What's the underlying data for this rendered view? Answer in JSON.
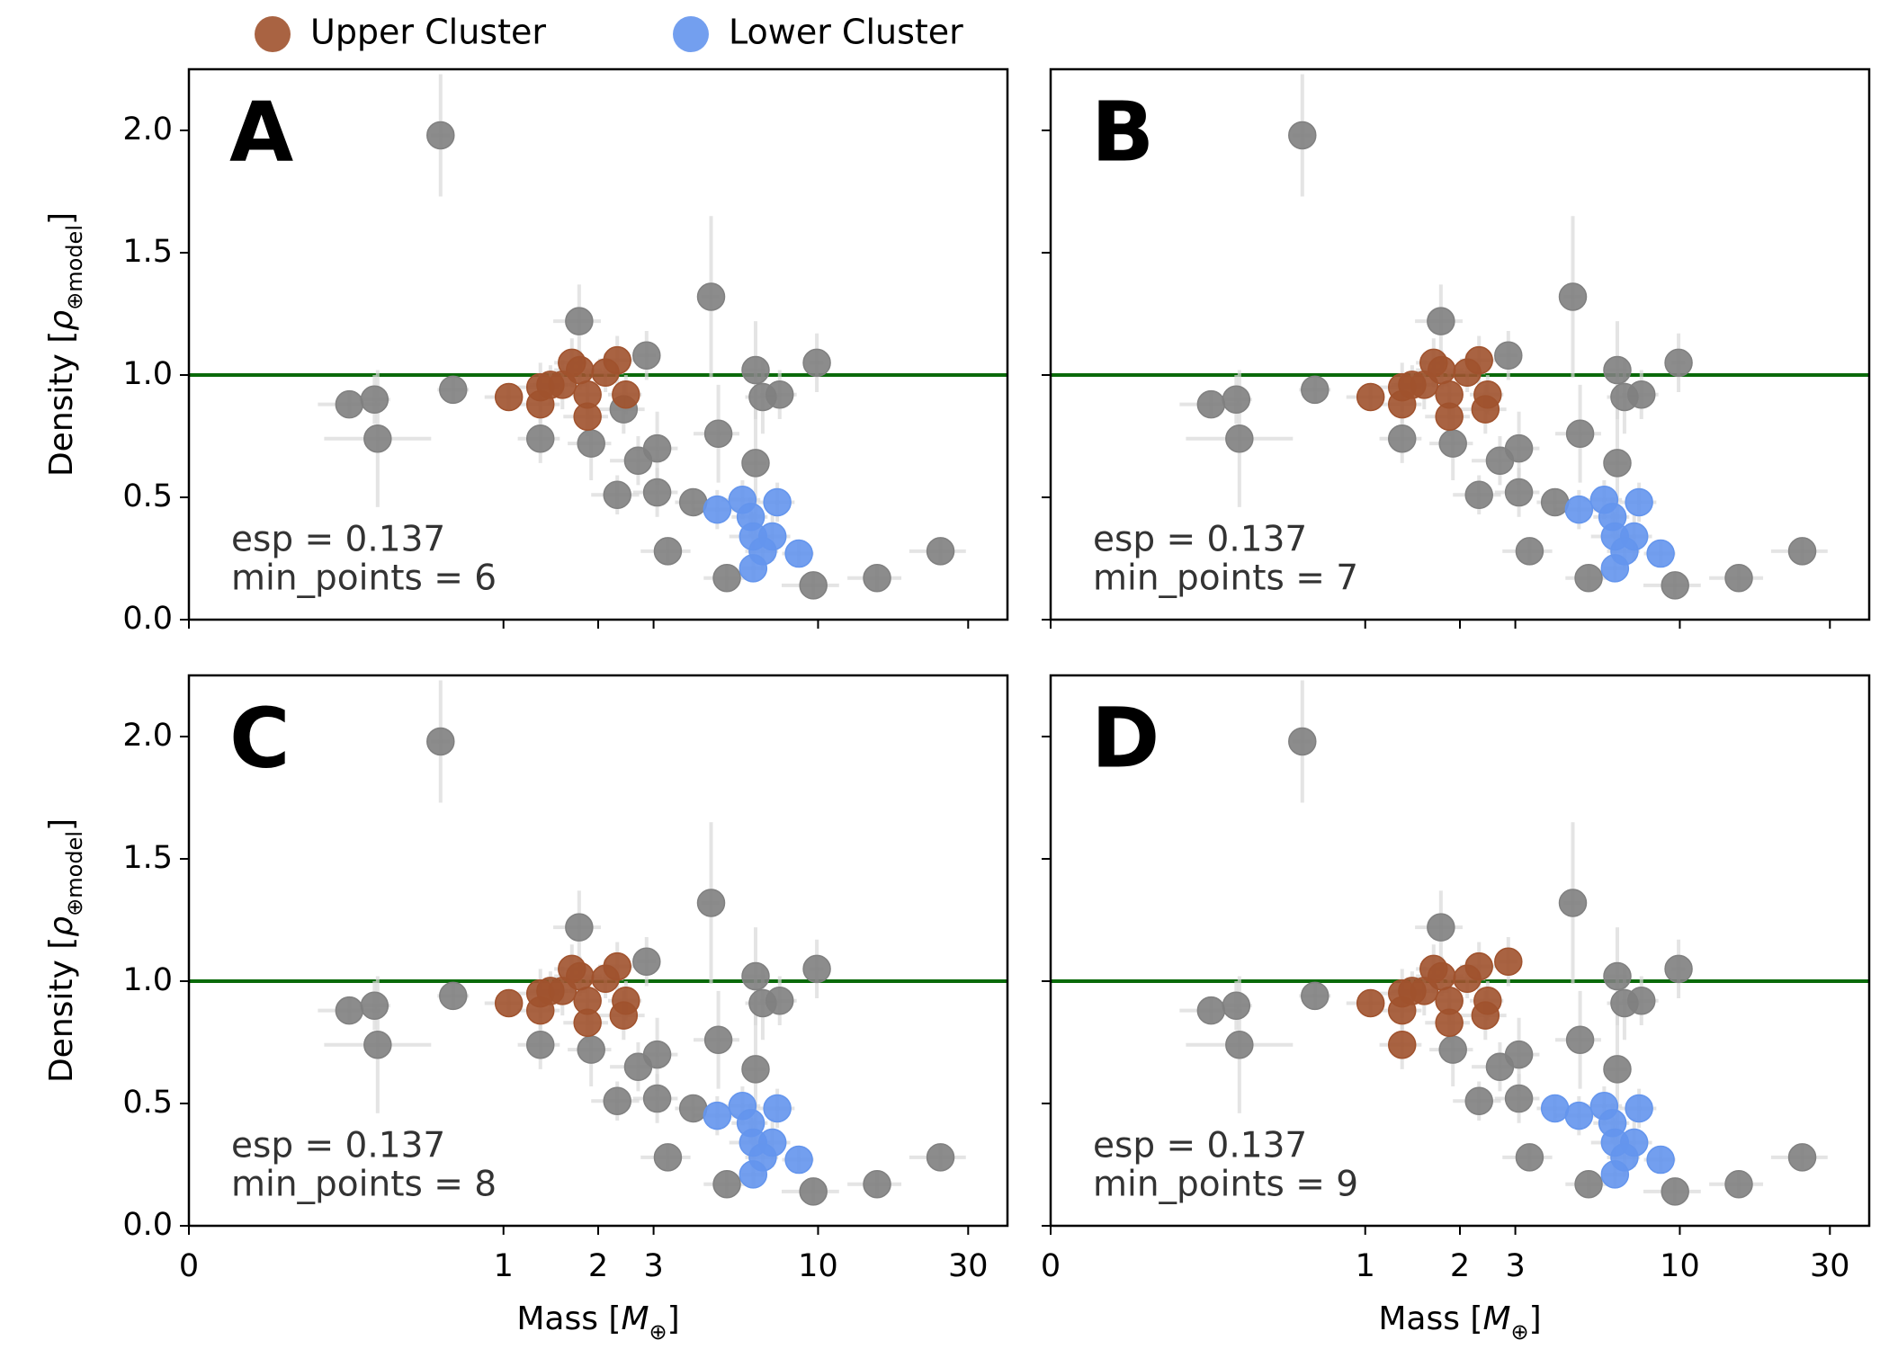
{
  "chart_data": [
    {
      "type": "scatter",
      "panel_label": "A",
      "annotation": [
        "esp = 0.137",
        "min_points = 6"
      ],
      "xscale": "symlog",
      "linthresh": 1,
      "xlim": [
        0,
        40
      ],
      "xticks": [
        0,
        1,
        2,
        3,
        10,
        30
      ],
      "ylim": [
        0,
        2.25
      ],
      "yticks": [
        {
          "value": 0,
          "label": "0.0"
        },
        0.5,
        {
          "value": 1,
          "label": "1.0"
        },
        1.5,
        {
          "value": 2,
          "label": "2.0"
        }
      ],
      "ylabel": [
        "Density [",
        "ρ",
        "⊕model",
        "]"
      ],
      "hline": 1,
      "hline_color": "#0a6a0a",
      "series": [
        {
          "color": "#808080",
          "x": [
            0.8,
            0.51,
            0.59,
            0.6,
            0.84,
            1.74,
            1.31,
            1.9,
            2.41,
            2.85,
            2.68,
            3.08,
            2.3,
            3.08,
            3.33,
            4.01,
            4.57,
            4.82,
            5.13,
            6.33,
            6.33,
            6.67,
            7.55,
            9.91,
            9.66,
            15.4,
            24.5
          ],
          "values": [
            1.98,
            0.88,
            0.9,
            0.74,
            0.94,
            1.22,
            0.74,
            0.72,
            0.86,
            1.08,
            0.65,
            0.7,
            0.51,
            0.52,
            0.28,
            0.48,
            1.32,
            0.76,
            0.17,
            1.02,
            0.64,
            0.91,
            0.92,
            1.05,
            0.14,
            0.17,
            0.28
          ],
          "xerr": [
            0.03,
            0.1,
            0.05,
            0.17,
            0.05,
            0.3,
            0.2,
            0.3,
            0.4,
            0.2,
            0.5,
            0.5,
            0.4,
            0.5,
            0.6,
            0.5,
            0.3,
            0.8,
            0.8,
            0.5,
            0.5,
            0.8,
            1.0,
            0.5,
            2,
            3,
            5
          ],
          "yerr": [
            0.25,
            0.05,
            0.1,
            0.28,
            0.05,
            0.15,
            0.1,
            0.15,
            0.1,
            0.1,
            0.1,
            0.15,
            0.08,
            0.1,
            0.05,
            0.05,
            0.33,
            0.2,
            0.05,
            0.2,
            0.3,
            0.15,
            0.1,
            0.12,
            0.05,
            0.05,
            0.05
          ]
        },
        {
          "name": "Upper Cluster",
          "color": "#a0522d",
          "x": [
            1.04,
            1.31,
            1.31,
            1.41,
            1.54,
            1.65,
            1.75,
            1.85,
            1.85,
            2.11,
            2.3,
            2.45
          ],
          "values": [
            0.91,
            0.95,
            0.88,
            0.96,
            0.96,
            1.05,
            1.02,
            0.92,
            0.83,
            1.01,
            1.06,
            0.92
          ],
          "xerr": [
            0.1,
            0.2,
            0.2,
            0.2,
            0.3,
            0.2,
            0.3,
            0.2,
            0.3,
            0.3,
            0.3,
            0.3
          ],
          "yerr": [
            0.05,
            0.1,
            0.08,
            0.08,
            0.1,
            0.1,
            0.08,
            0.1,
            0.08,
            0.08,
            0.1,
            0.08
          ]
        },
        {
          "name": "Lower Cluster",
          "color": "#6495ed",
          "x": [
            4.78,
            5.75,
            7.42,
            6.11,
            6.22,
            7.16,
            6.67,
            6.22,
            8.69
          ],
          "values": [
            0.45,
            0.49,
            0.48,
            0.42,
            0.34,
            0.34,
            0.28,
            0.21,
            0.27
          ],
          "xerr": [
            0.8,
            0.8,
            1.0,
            0.8,
            1.0,
            1.0,
            0.8,
            0.5,
            1.0
          ],
          "yerr": [
            0.08,
            0.08,
            0.08,
            0.08,
            0.1,
            0.1,
            0.08,
            0.05,
            0.05
          ]
        }
      ]
    },
    {
      "type": "scatter",
      "panel_label": "B",
      "annotation": [
        "esp = 0.137",
        "min_points = 7"
      ],
      "xscale": "symlog",
      "linthresh": 1,
      "xlim": [
        0,
        40
      ],
      "xticks": [
        0,
        1,
        2,
        3,
        10,
        30
      ],
      "ylim": [
        0,
        2.25
      ],
      "yticks": [
        0,
        0.5,
        1,
        1.5,
        2
      ],
      "hline": 1,
      "hline_color": "#0a6a0a",
      "series": [
        {
          "color": "#808080",
          "x": [
            0.8,
            0.51,
            0.59,
            0.6,
            0.84,
            1.74,
            1.31,
            1.9,
            2.85,
            2.68,
            3.08,
            2.3,
            3.08,
            3.33,
            4.01,
            4.57,
            4.82,
            5.13,
            6.33,
            6.33,
            6.67,
            7.55,
            9.91,
            9.66,
            15.4,
            24.5
          ],
          "values": [
            1.98,
            0.88,
            0.9,
            0.74,
            0.94,
            1.22,
            0.74,
            0.72,
            1.08,
            0.65,
            0.7,
            0.51,
            0.52,
            0.28,
            0.48,
            1.32,
            0.76,
            0.17,
            1.02,
            0.64,
            0.91,
            0.92,
            1.05,
            0.14,
            0.17,
            0.28
          ],
          "xerr": [
            0.03,
            0.1,
            0.05,
            0.17,
            0.05,
            0.3,
            0.2,
            0.3,
            0.2,
            0.5,
            0.5,
            0.4,
            0.5,
            0.6,
            0.5,
            0.3,
            0.8,
            0.8,
            0.5,
            0.5,
            0.8,
            1.0,
            0.5,
            2,
            3,
            5
          ],
          "yerr": [
            0.25,
            0.05,
            0.1,
            0.28,
            0.05,
            0.15,
            0.1,
            0.15,
            0.1,
            0.1,
            0.15,
            0.08,
            0.1,
            0.05,
            0.05,
            0.33,
            0.2,
            0.05,
            0.2,
            0.3,
            0.15,
            0.1,
            0.12,
            0.05,
            0.05,
            0.05
          ]
        },
        {
          "color": "#a0522d",
          "x": [
            1.04,
            1.31,
            1.31,
            1.41,
            1.54,
            1.65,
            1.75,
            1.85,
            1.85,
            2.11,
            2.3,
            2.45,
            2.41
          ],
          "values": [
            0.91,
            0.95,
            0.88,
            0.96,
            0.96,
            1.05,
            1.02,
            0.92,
            0.83,
            1.01,
            1.06,
            0.92,
            0.86
          ],
          "xerr": [
            0.1,
            0.2,
            0.2,
            0.2,
            0.3,
            0.2,
            0.3,
            0.2,
            0.3,
            0.3,
            0.3,
            0.3,
            0.4
          ],
          "yerr": [
            0.05,
            0.1,
            0.08,
            0.08,
            0.1,
            0.1,
            0.08,
            0.1,
            0.08,
            0.08,
            0.1,
            0.08,
            0.1
          ]
        },
        {
          "color": "#6495ed",
          "x": [
            4.78,
            5.75,
            7.42,
            6.11,
            6.22,
            7.16,
            6.67,
            6.22,
            8.69
          ],
          "values": [
            0.45,
            0.49,
            0.48,
            0.42,
            0.34,
            0.34,
            0.28,
            0.21,
            0.27
          ],
          "xerr": [
            0.8,
            0.8,
            1.0,
            0.8,
            1.0,
            1.0,
            0.8,
            0.5,
            1.0
          ],
          "yerr": [
            0.08,
            0.08,
            0.08,
            0.08,
            0.1,
            0.1,
            0.08,
            0.05,
            0.05
          ]
        }
      ]
    },
    {
      "type": "scatter",
      "panel_label": "C",
      "annotation": [
        "esp = 0.137",
        "min_points = 8"
      ],
      "xscale": "symlog",
      "linthresh": 1,
      "xlim": [
        0,
        40
      ],
      "xticks": [
        0,
        1,
        2,
        3,
        10,
        30
      ],
      "ylim": [
        0,
        2.25
      ],
      "yticks": [
        {
          "value": 0,
          "label": "0.0"
        },
        0.5,
        {
          "value": 1,
          "label": "1.0"
        },
        1.5,
        {
          "value": 2,
          "label": "2.0"
        }
      ],
      "ylabel": [
        "Density [",
        "ρ",
        "⊕model",
        "]"
      ],
      "xlabel": [
        "Mass [",
        "M",
        "⊕",
        "]"
      ],
      "hline": 1,
      "hline_color": "#0a6a0a",
      "series": [
        {
          "color": "#808080",
          "x": [
            0.8,
            0.51,
            0.59,
            0.6,
            0.84,
            1.74,
            1.31,
            1.9,
            2.85,
            2.68,
            3.08,
            2.3,
            3.08,
            3.33,
            4.01,
            4.57,
            4.82,
            5.13,
            6.33,
            6.33,
            6.67,
            7.55,
            9.91,
            9.66,
            15.4,
            24.5
          ],
          "values": [
            1.98,
            0.88,
            0.9,
            0.74,
            0.94,
            1.22,
            0.74,
            0.72,
            1.08,
            0.65,
            0.7,
            0.51,
            0.52,
            0.28,
            0.48,
            1.32,
            0.76,
            0.17,
            1.02,
            0.64,
            0.91,
            0.92,
            1.05,
            0.14,
            0.17,
            0.28
          ],
          "xerr": [
            0.03,
            0.1,
            0.05,
            0.17,
            0.05,
            0.3,
            0.2,
            0.3,
            0.2,
            0.5,
            0.5,
            0.4,
            0.5,
            0.6,
            0.5,
            0.3,
            0.8,
            0.8,
            0.5,
            0.5,
            0.8,
            1.0,
            0.5,
            2,
            3,
            5
          ],
          "yerr": [
            0.25,
            0.05,
            0.1,
            0.28,
            0.05,
            0.15,
            0.1,
            0.15,
            0.1,
            0.1,
            0.15,
            0.08,
            0.1,
            0.05,
            0.05,
            0.33,
            0.2,
            0.05,
            0.2,
            0.3,
            0.15,
            0.1,
            0.12,
            0.05,
            0.05,
            0.05
          ]
        },
        {
          "color": "#a0522d",
          "x": [
            1.04,
            1.31,
            1.31,
            1.41,
            1.54,
            1.65,
            1.75,
            1.85,
            1.85,
            2.11,
            2.3,
            2.45,
            2.41
          ],
          "values": [
            0.91,
            0.95,
            0.88,
            0.96,
            0.96,
            1.05,
            1.02,
            0.92,
            0.83,
            1.01,
            1.06,
            0.92,
            0.86
          ],
          "xerr": [
            0.1,
            0.2,
            0.2,
            0.2,
            0.3,
            0.2,
            0.3,
            0.2,
            0.3,
            0.3,
            0.3,
            0.3,
            0.4
          ],
          "yerr": [
            0.05,
            0.1,
            0.08,
            0.08,
            0.1,
            0.1,
            0.08,
            0.1,
            0.08,
            0.08,
            0.1,
            0.08,
            0.1
          ]
        },
        {
          "color": "#6495ed",
          "x": [
            4.78,
            5.75,
            7.42,
            6.11,
            6.22,
            7.16,
            6.67,
            6.22,
            8.69
          ],
          "values": [
            0.45,
            0.49,
            0.48,
            0.42,
            0.34,
            0.34,
            0.28,
            0.21,
            0.27
          ],
          "xerr": [
            0.8,
            0.8,
            1.0,
            0.8,
            1.0,
            1.0,
            0.8,
            0.5,
            1.0
          ],
          "yerr": [
            0.08,
            0.08,
            0.08,
            0.08,
            0.1,
            0.1,
            0.08,
            0.05,
            0.05
          ]
        }
      ]
    },
    {
      "type": "scatter",
      "panel_label": "D",
      "annotation": [
        "esp = 0.137",
        "min_points = 9"
      ],
      "xscale": "symlog",
      "linthresh": 1,
      "xlim": [
        0,
        40
      ],
      "xticks": [
        0,
        1,
        2,
        3,
        10,
        30
      ],
      "ylim": [
        0,
        2.25
      ],
      "yticks": [
        0,
        0.5,
        1,
        1.5,
        2
      ],
      "xlabel": [
        "Mass [",
        "M",
        "⊕",
        "]"
      ],
      "hline": 1,
      "hline_color": "#0a6a0a",
      "series": [
        {
          "color": "#808080",
          "x": [
            0.8,
            0.51,
            0.59,
            0.6,
            0.84,
            1.74,
            1.9,
            2.68,
            3.08,
            2.3,
            3.08,
            3.33,
            4.57,
            4.82,
            5.13,
            6.33,
            6.33,
            6.67,
            7.55,
            9.91,
            9.66,
            15.4,
            24.5
          ],
          "values": [
            1.98,
            0.88,
            0.9,
            0.74,
            0.94,
            1.22,
            0.72,
            0.65,
            0.7,
            0.51,
            0.52,
            0.28,
            1.32,
            0.76,
            0.17,
            1.02,
            0.64,
            0.91,
            0.92,
            1.05,
            0.14,
            0.17,
            0.28
          ],
          "xerr": [
            0.03,
            0.1,
            0.05,
            0.17,
            0.05,
            0.3,
            0.3,
            0.5,
            0.5,
            0.4,
            0.5,
            0.6,
            0.3,
            0.8,
            0.8,
            0.5,
            0.5,
            0.8,
            1.0,
            0.5,
            2,
            3,
            5
          ],
          "yerr": [
            0.25,
            0.05,
            0.1,
            0.28,
            0.05,
            0.15,
            0.15,
            0.1,
            0.15,
            0.08,
            0.1,
            0.05,
            0.33,
            0.2,
            0.05,
            0.2,
            0.3,
            0.15,
            0.1,
            0.12,
            0.05,
            0.05,
            0.05
          ]
        },
        {
          "color": "#a0522d",
          "x": [
            1.04,
            1.31,
            1.31,
            1.41,
            1.54,
            1.65,
            1.75,
            1.85,
            1.85,
            2.11,
            2.3,
            2.45,
            1.31,
            2.41,
            2.85
          ],
          "values": [
            0.91,
            0.95,
            0.88,
            0.96,
            0.96,
            1.05,
            1.02,
            0.92,
            0.83,
            1.01,
            1.06,
            0.92,
            0.74,
            0.86,
            1.08
          ],
          "xerr": [
            0.1,
            0.2,
            0.2,
            0.2,
            0.3,
            0.2,
            0.3,
            0.2,
            0.3,
            0.3,
            0.3,
            0.3,
            0.2,
            0.4,
            0.2
          ],
          "yerr": [
            0.05,
            0.1,
            0.08,
            0.08,
            0.1,
            0.1,
            0.08,
            0.1,
            0.08,
            0.08,
            0.1,
            0.08,
            0.1,
            0.1,
            0.1
          ]
        },
        {
          "color": "#6495ed",
          "x": [
            4.01,
            4.78,
            5.75,
            7.42,
            6.11,
            6.22,
            7.16,
            6.67,
            6.22,
            8.69
          ],
          "values": [
            0.48,
            0.45,
            0.49,
            0.48,
            0.42,
            0.34,
            0.34,
            0.28,
            0.21,
            0.27
          ],
          "xerr": [
            0.5,
            0.8,
            0.8,
            1.0,
            0.8,
            1.0,
            1.0,
            0.8,
            0.5,
            1.0
          ],
          "yerr": [
            0.05,
            0.08,
            0.08,
            0.08,
            0.08,
            0.1,
            0.1,
            0.08,
            0.05,
            0.05
          ]
        }
      ]
    }
  ]
}
